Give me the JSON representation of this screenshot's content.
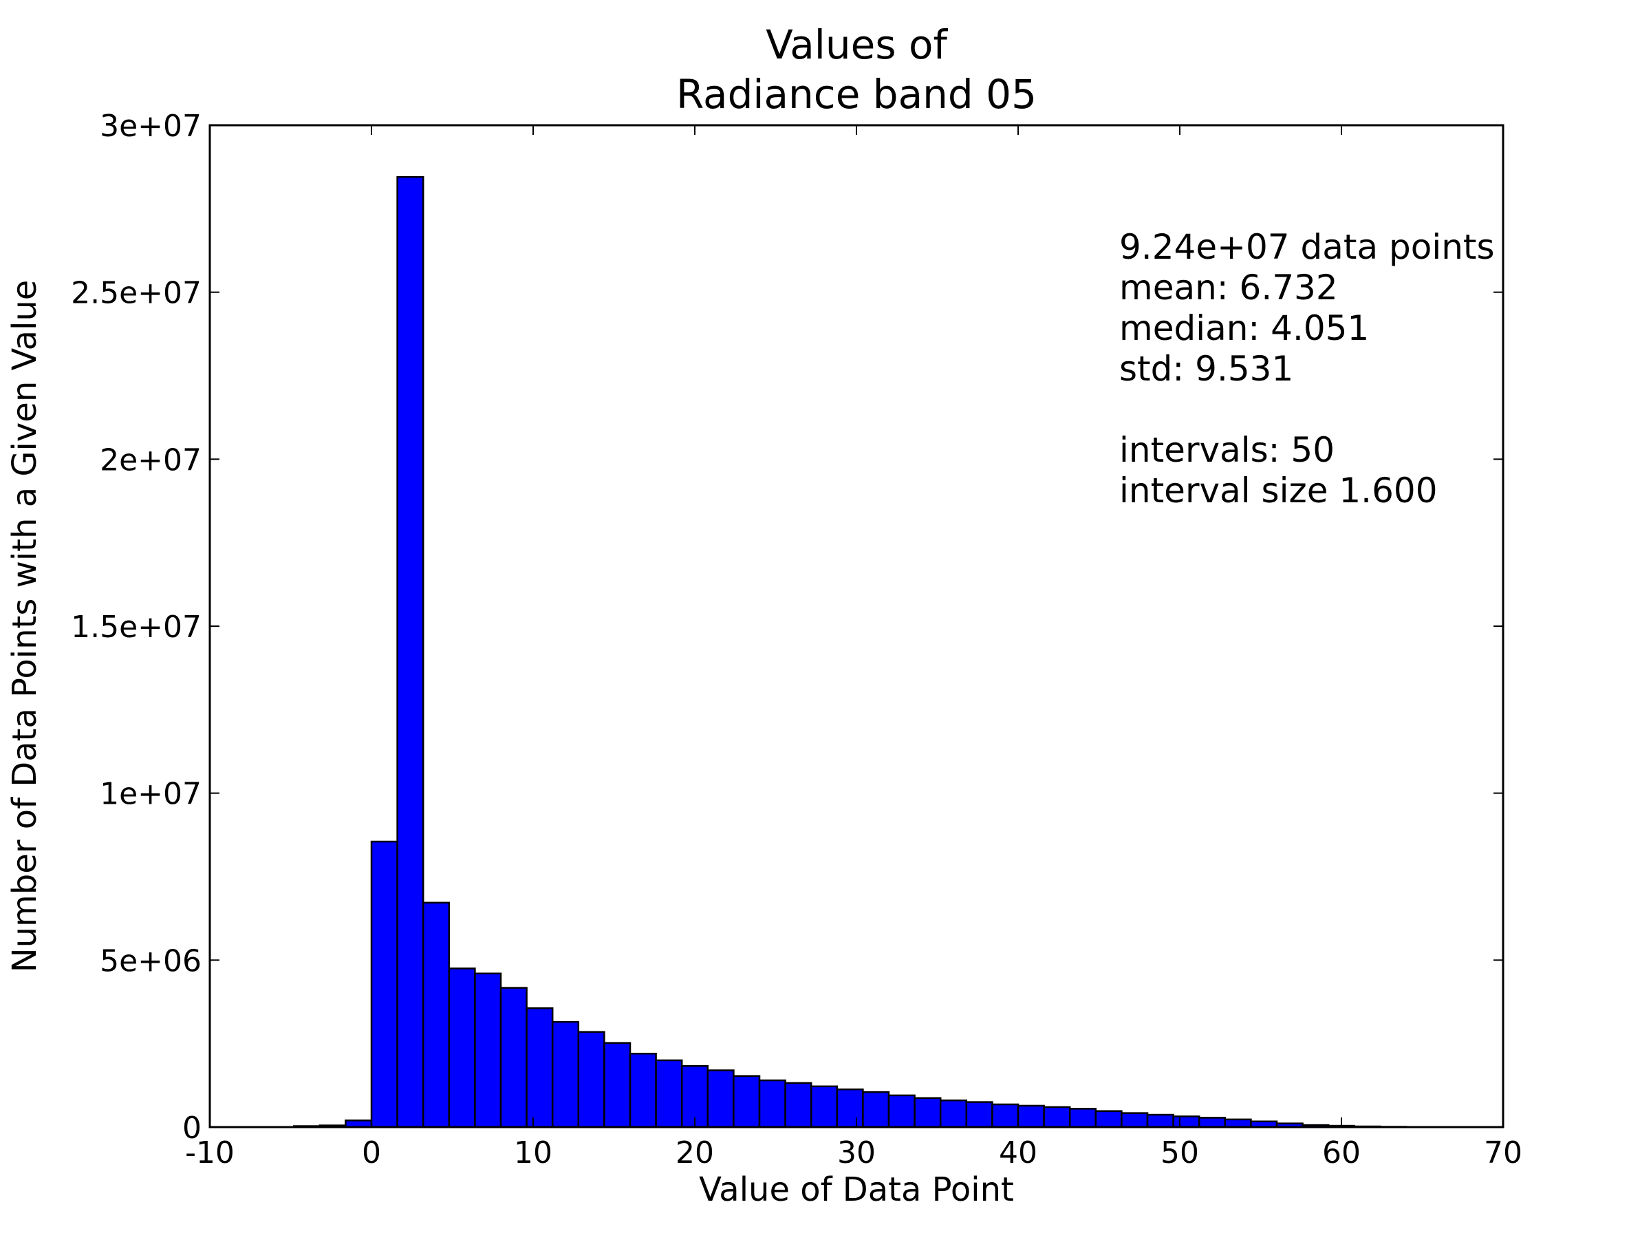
{
  "chart_data": {
    "type": "bar",
    "title_lines": [
      "Values of",
      "Radiance band 05"
    ],
    "xlabel": "Value of Data Point",
    "ylabel": "Number of Data Points with a Given Value",
    "xlim": [
      -10,
      70
    ],
    "ylim": [
      0,
      30000000
    ],
    "x_ticks": [
      -10,
      0,
      10,
      20,
      30,
      40,
      50,
      60,
      70
    ],
    "x_tick_labels": [
      "-10",
      "0",
      "10",
      "20",
      "30",
      "40",
      "50",
      "60",
      "70"
    ],
    "y_ticks": [
      0,
      5000000,
      10000000,
      15000000,
      20000000,
      25000000,
      30000000
    ],
    "y_tick_labels": [
      "0",
      "5e+06",
      "1e+07",
      "1.5e+07",
      "2e+07",
      "2.5e+07",
      "3e+07"
    ],
    "bar_color": "#0000ff",
    "edge_color": "#000000",
    "grid": false,
    "annotation_lines": [
      "9.24e+07 data points",
      "mean: 6.732",
      "median: 4.051",
      "std: 9.531",
      "",
      "intervals: 50",
      "interval size 1.600"
    ],
    "bins": {
      "start": -16.0,
      "width": 1.6,
      "counts": [
        0,
        0,
        0,
        0,
        0,
        0,
        5000,
        30000,
        50000,
        200000,
        8550000,
        28450000,
        6720000,
        4750000,
        4600000,
        4170000,
        3560000,
        3150000,
        2850000,
        2520000,
        2200000,
        2000000,
        1830000,
        1700000,
        1530000,
        1400000,
        1320000,
        1220000,
        1130000,
        1050000,
        950000,
        870000,
        800000,
        750000,
        680000,
        640000,
        600000,
        550000,
        480000,
        420000,
        370000,
        320000,
        280000,
        230000,
        170000,
        110000,
        60000,
        40000,
        20000,
        10000
      ]
    }
  }
}
